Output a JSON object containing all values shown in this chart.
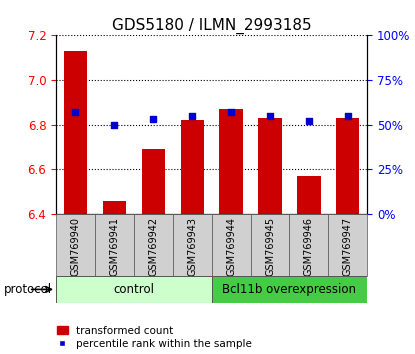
{
  "title": "GDS5180 / ILMN_2993185",
  "categories": [
    "GSM769940",
    "GSM769941",
    "GSM769942",
    "GSM769943",
    "GSM769944",
    "GSM769945",
    "GSM769946",
    "GSM769947"
  ],
  "transformed_count": [
    7.13,
    6.46,
    6.69,
    6.82,
    6.87,
    6.83,
    6.57,
    6.83
  ],
  "percentile_rank": [
    57,
    50,
    53,
    55,
    57,
    55,
    52,
    55
  ],
  "ylim_left": [
    6.4,
    7.2
  ],
  "ylim_right": [
    0,
    100
  ],
  "yticks_left": [
    6.4,
    6.6,
    6.8,
    7.0,
    7.2
  ],
  "yticks_right": [
    0,
    25,
    50,
    75,
    100
  ],
  "bar_color": "#cc0000",
  "dot_color": "#0000cc",
  "bar_bottom": 6.4,
  "control_label": "control",
  "treatment_label": "Bcl11b overexpression",
  "control_count": 4,
  "treatment_count": 4,
  "control_bg": "#ccffcc",
  "treatment_bg": "#44cc44",
  "sample_bg": "#d0d0d0",
  "protocol_label": "protocol",
  "legend_bar_label": "transformed count",
  "legend_dot_label": "percentile rank within the sample",
  "title_fontsize": 11,
  "tick_fontsize": 8.5
}
